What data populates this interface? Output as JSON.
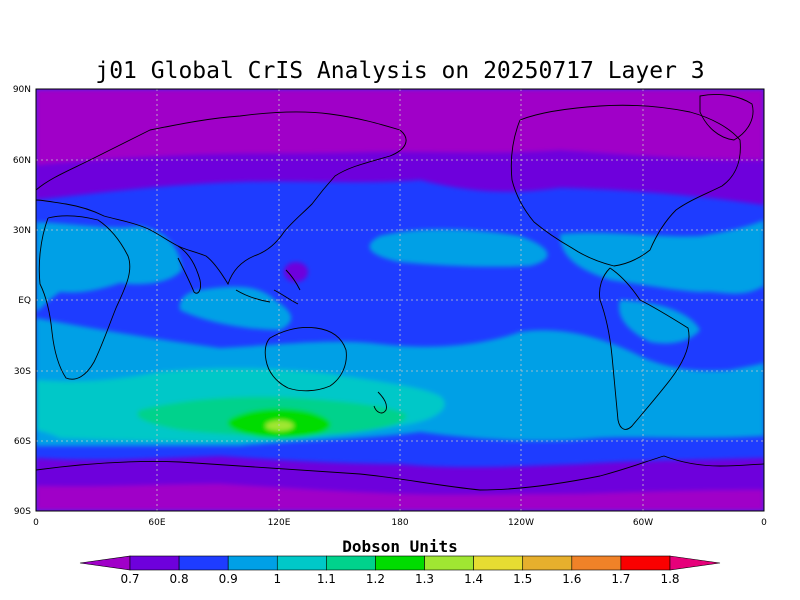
{
  "title": "j01 Global CrIS Analysis on 20250717 Layer 3",
  "lat_ticks": [
    "90N",
    "60N",
    "30N",
    "EQ",
    "30S",
    "60S",
    "90S"
  ],
  "lon_ticks": [
    "0",
    "60E",
    "120E",
    "180",
    "120W",
    "60W",
    "0"
  ],
  "colorbar": {
    "title": "Dobson Units",
    "labels": [
      "0.7",
      "0.8",
      "0.9",
      "1",
      "1.1",
      "1.2",
      "1.3",
      "1.4",
      "1.5",
      "1.6",
      "1.7",
      "1.8"
    ],
    "colors": [
      "#a000c8",
      "#6e00dc",
      "#1e3cff",
      "#00a0e6",
      "#00c8c8",
      "#00d28c",
      "#00dc00",
      "#a0e632",
      "#e6dc32",
      "#e6af2d",
      "#f08228",
      "#fa0000",
      "#e6007a"
    ]
  }
}
